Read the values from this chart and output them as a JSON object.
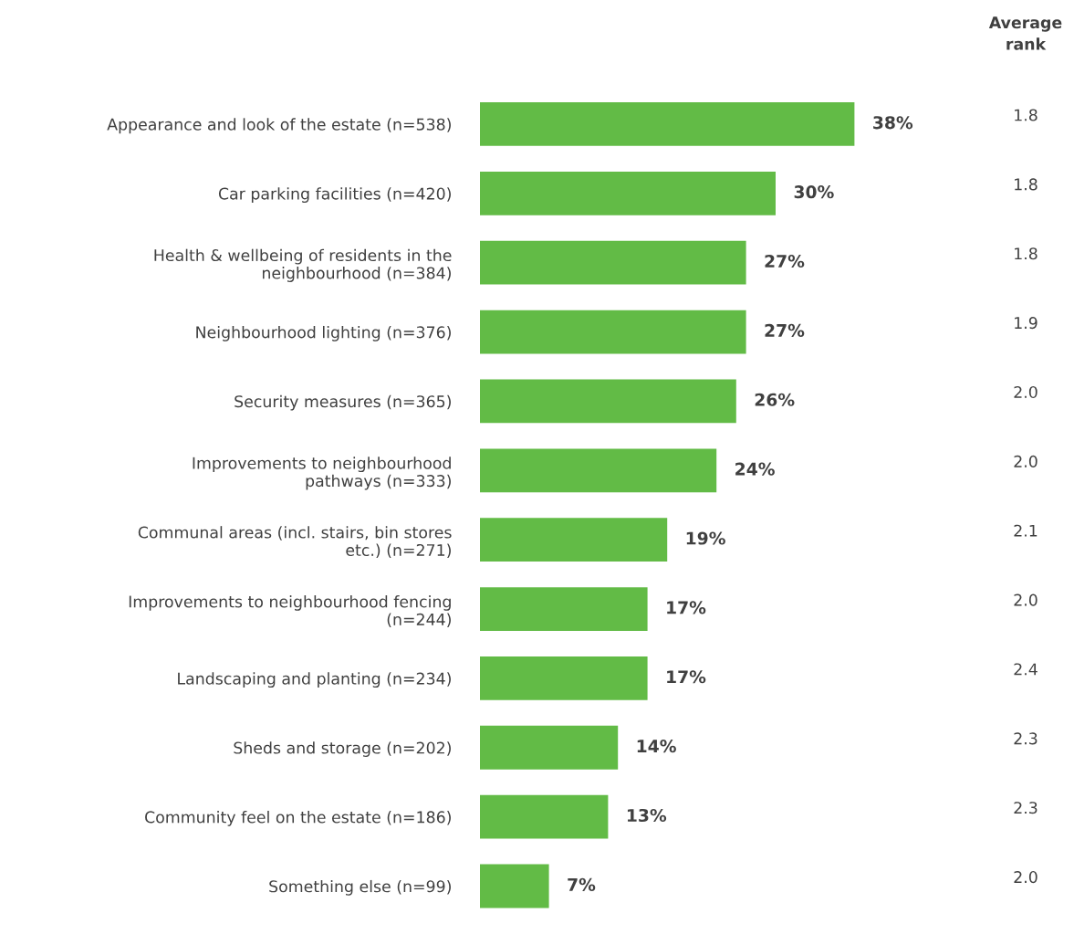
{
  "chart_data": {
    "type": "bar",
    "orientation": "horizontal",
    "categories": [
      "Appearance and look of the estate (n=538)",
      "Car parking facilities (n=420)",
      "Health & wellbeing of residents in the\nneighbourhood (n=384)",
      "Neighbourhood lighting (n=376)",
      "Security measures (n=365)",
      "Improvements to neighbourhood\npathways (n=333)",
      "Communal areas (incl. stairs, bin stores\netc.) (n=271)",
      "Improvements to neighbourhood fencing\n(n=244)",
      "Landscaping and planting (n=234)",
      "Sheds and storage (n=202)",
      "Community feel on the estate (n=186)",
      "Something else (n=99)"
    ],
    "values": [
      38,
      30,
      27,
      27,
      26,
      24,
      19,
      17,
      17,
      14,
      13,
      7
    ],
    "value_labels": [
      "38%",
      "30%",
      "27%",
      "27%",
      "26%",
      "24%",
      "19%",
      "17%",
      "17%",
      "14%",
      "13%",
      "7%"
    ],
    "color": "#62bb46",
    "annotations": [
      "Average rank",
      "1.8",
      "1.8",
      "1.8",
      "1.9",
      "2.0",
      "2.0",
      "2.1",
      "2.0",
      "2.4",
      "2.3",
      "2.3",
      "2.0"
    ]
  }
}
